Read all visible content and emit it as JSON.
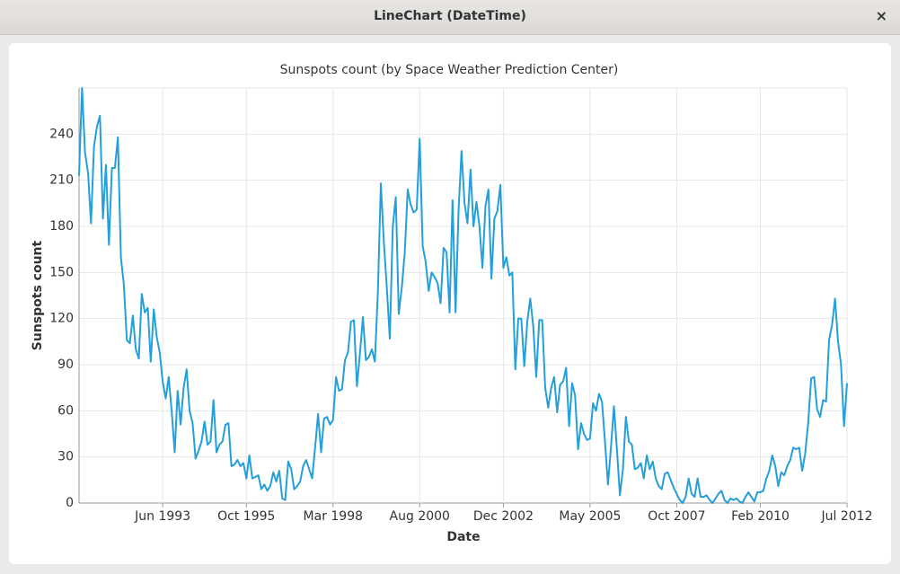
{
  "window": {
    "title": "LineChart (DateTime)",
    "close": "×"
  },
  "chart_data": {
    "type": "line",
    "title": "Sunspots count (by Space Weather Prediction Center)",
    "x_label": "Date",
    "y_label": "Sunspots count",
    "color": "#259fd9",
    "grid": true,
    "xlim": [
      "1991-02",
      "2012-07"
    ],
    "xticks": [
      {
        "value": "1993-06",
        "label": "Jun 1993"
      },
      {
        "value": "1995-10",
        "label": "Oct 1995"
      },
      {
        "value": "1998-03",
        "label": "Mar 1998"
      },
      {
        "value": "2000-08",
        "label": "Aug 2000"
      },
      {
        "value": "2002-12",
        "label": "Dec 2002"
      },
      {
        "value": "2005-05",
        "label": "May 2005"
      },
      {
        "value": "2007-10",
        "label": "Oct 2007"
      },
      {
        "value": "2010-02",
        "label": "Feb 2010"
      },
      {
        "value": "2012-07",
        "label": "Jul 2012"
      }
    ],
    "ylim": [
      0,
      270
    ],
    "yticks": [
      0,
      30,
      60,
      90,
      120,
      150,
      180,
      210,
      240
    ],
    "x": [
      "1991-02",
      "1991-03",
      "1991-04",
      "1991-05",
      "1991-06",
      "1991-07",
      "1991-08",
      "1991-09",
      "1991-10",
      "1991-11",
      "1991-12",
      "1992-01",
      "1992-02",
      "1992-03",
      "1992-04",
      "1992-05",
      "1992-06",
      "1992-07",
      "1992-08",
      "1992-09",
      "1992-10",
      "1992-11",
      "1992-12",
      "1993-01",
      "1993-02",
      "1993-03",
      "1993-04",
      "1993-05",
      "1993-06",
      "1993-07",
      "1993-08",
      "1993-09",
      "1993-10",
      "1993-11",
      "1993-12",
      "1994-01",
      "1994-02",
      "1994-03",
      "1994-04",
      "1994-05",
      "1994-06",
      "1994-07",
      "1994-08",
      "1994-09",
      "1994-10",
      "1994-11",
      "1994-12",
      "1995-01",
      "1995-02",
      "1995-03",
      "1995-04",
      "1995-05",
      "1995-06",
      "1995-07",
      "1995-08",
      "1995-09",
      "1995-10",
      "1995-11",
      "1995-12",
      "1996-01",
      "1996-02",
      "1996-03",
      "1996-04",
      "1996-05",
      "1996-06",
      "1996-07",
      "1996-08",
      "1996-09",
      "1996-10",
      "1996-11",
      "1996-12",
      "1997-01",
      "1997-02",
      "1997-03",
      "1997-04",
      "1997-05",
      "1997-06",
      "1997-07",
      "1997-08",
      "1997-09",
      "1997-10",
      "1997-11",
      "1997-12",
      "1998-01",
      "1998-02",
      "1998-03",
      "1998-04",
      "1998-05",
      "1998-06",
      "1998-07",
      "1998-08",
      "1998-09",
      "1998-10",
      "1998-11",
      "1998-12",
      "1999-01",
      "1999-02",
      "1999-03",
      "1999-04",
      "1999-05",
      "1999-06",
      "1999-07",
      "1999-08",
      "1999-09",
      "1999-10",
      "1999-11",
      "1999-12",
      "2000-01",
      "2000-02",
      "2000-03",
      "2000-04",
      "2000-05",
      "2000-06",
      "2000-07",
      "2000-08",
      "2000-09",
      "2000-10",
      "2000-11",
      "2000-12",
      "2001-01",
      "2001-02",
      "2001-03",
      "2001-04",
      "2001-05",
      "2001-06",
      "2001-07",
      "2001-08",
      "2001-09",
      "2001-10",
      "2001-11",
      "2001-12",
      "2002-01",
      "2002-02",
      "2002-03",
      "2002-04",
      "2002-05",
      "2002-06",
      "2002-07",
      "2002-08",
      "2002-09",
      "2002-10",
      "2002-11",
      "2002-12",
      "2003-01",
      "2003-02",
      "2003-03",
      "2003-04",
      "2003-05",
      "2003-06",
      "2003-07",
      "2003-08",
      "2003-09",
      "2003-10",
      "2003-11",
      "2003-12",
      "2004-01",
      "2004-02",
      "2004-03",
      "2004-04",
      "2004-05",
      "2004-06",
      "2004-07",
      "2004-08",
      "2004-09",
      "2004-10",
      "2004-11",
      "2004-12",
      "2005-01",
      "2005-02",
      "2005-03",
      "2005-04",
      "2005-05",
      "2005-06",
      "2005-07",
      "2005-08",
      "2005-09",
      "2005-10",
      "2005-11",
      "2005-12",
      "2006-01",
      "2006-02",
      "2006-03",
      "2006-04",
      "2006-05",
      "2006-06",
      "2006-07",
      "2006-08",
      "2006-09",
      "2006-10",
      "2006-11",
      "2006-12",
      "2007-01",
      "2007-02",
      "2007-03",
      "2007-04",
      "2007-05",
      "2007-06",
      "2007-07",
      "2007-08",
      "2007-09",
      "2007-10",
      "2007-11",
      "2007-12",
      "2008-01",
      "2008-02",
      "2008-03",
      "2008-04",
      "2008-05",
      "2008-06",
      "2008-07",
      "2008-08",
      "2008-09",
      "2008-10",
      "2008-11",
      "2008-12",
      "2009-01",
      "2009-02",
      "2009-03",
      "2009-04",
      "2009-05",
      "2009-06",
      "2009-07",
      "2009-08",
      "2009-09",
      "2009-10",
      "2009-11",
      "2009-12",
      "2010-01",
      "2010-02",
      "2010-03",
      "2010-04",
      "2010-05",
      "2010-06",
      "2010-07",
      "2010-08",
      "2010-09",
      "2010-10",
      "2010-11",
      "2010-12",
      "2011-01",
      "2011-02",
      "2011-03",
      "2011-04",
      "2011-05",
      "2011-06",
      "2011-07",
      "2011-08",
      "2011-09",
      "2011-10",
      "2011-11",
      "2011-12",
      "2012-01",
      "2012-02",
      "2012-03",
      "2012-04",
      "2012-05",
      "2012-06",
      "2012-07"
    ],
    "values": [
      213,
      270,
      228,
      215,
      182,
      232,
      245,
      252,
      185,
      220,
      168,
      218,
      218,
      238,
      160,
      142,
      106,
      104,
      122,
      100,
      94,
      136,
      124,
      127,
      92,
      126,
      108,
      98,
      79,
      68,
      82,
      60,
      33,
      73,
      51,
      75,
      87,
      60,
      52,
      29,
      34,
      40,
      53,
      38,
      40,
      67,
      33,
      38,
      40,
      51,
      52,
      24,
      25,
      28,
      24,
      26,
      16,
      31,
      16,
      17,
      18,
      9,
      12,
      8,
      11,
      20,
      14,
      21,
      3,
      2,
      27,
      22,
      9,
      11,
      14,
      24,
      28,
      22,
      16,
      36,
      58,
      33,
      55,
      56,
      51,
      54,
      82,
      73,
      74,
      93,
      98,
      118,
      119,
      76,
      97,
      121,
      93,
      95,
      100,
      92,
      137,
      208,
      170,
      140,
      107,
      180,
      199,
      123,
      140,
      163,
      204,
      194,
      189,
      191,
      237,
      167,
      157,
      138,
      150,
      147,
      143,
      130,
      166,
      163,
      124,
      197,
      124,
      190,
      229,
      195,
      182,
      217,
      180,
      196,
      180,
      153,
      193,
      204,
      146,
      185,
      190,
      207,
      153,
      160,
      148,
      150,
      87,
      120,
      120,
      89,
      118,
      133,
      115,
      82,
      119,
      119,
      75,
      62,
      75,
      82,
      59,
      77,
      79,
      88,
      50,
      78,
      70,
      35,
      52,
      45,
      41,
      42,
      65,
      60,
      71,
      66,
      40,
      12,
      36,
      63,
      35,
      5,
      22,
      56,
      40,
      38,
      22,
      23,
      26,
      16,
      31,
      22,
      27,
      16,
      11,
      9,
      19,
      20,
      15,
      10,
      6,
      2,
      0,
      4,
      16,
      6,
      4,
      16,
      4,
      4,
      5,
      2,
      0,
      3,
      6,
      8,
      2,
      0,
      3,
      2,
      3,
      1,
      0,
      4,
      7,
      4,
      1,
      7,
      7,
      8,
      16,
      21,
      31,
      24,
      11,
      20,
      18,
      24,
      28,
      36,
      35,
      36,
      21,
      32,
      52,
      81,
      82,
      61,
      56,
      67,
      66,
      106,
      116,
      133,
      105,
      90,
      50,
      78
    ]
  }
}
